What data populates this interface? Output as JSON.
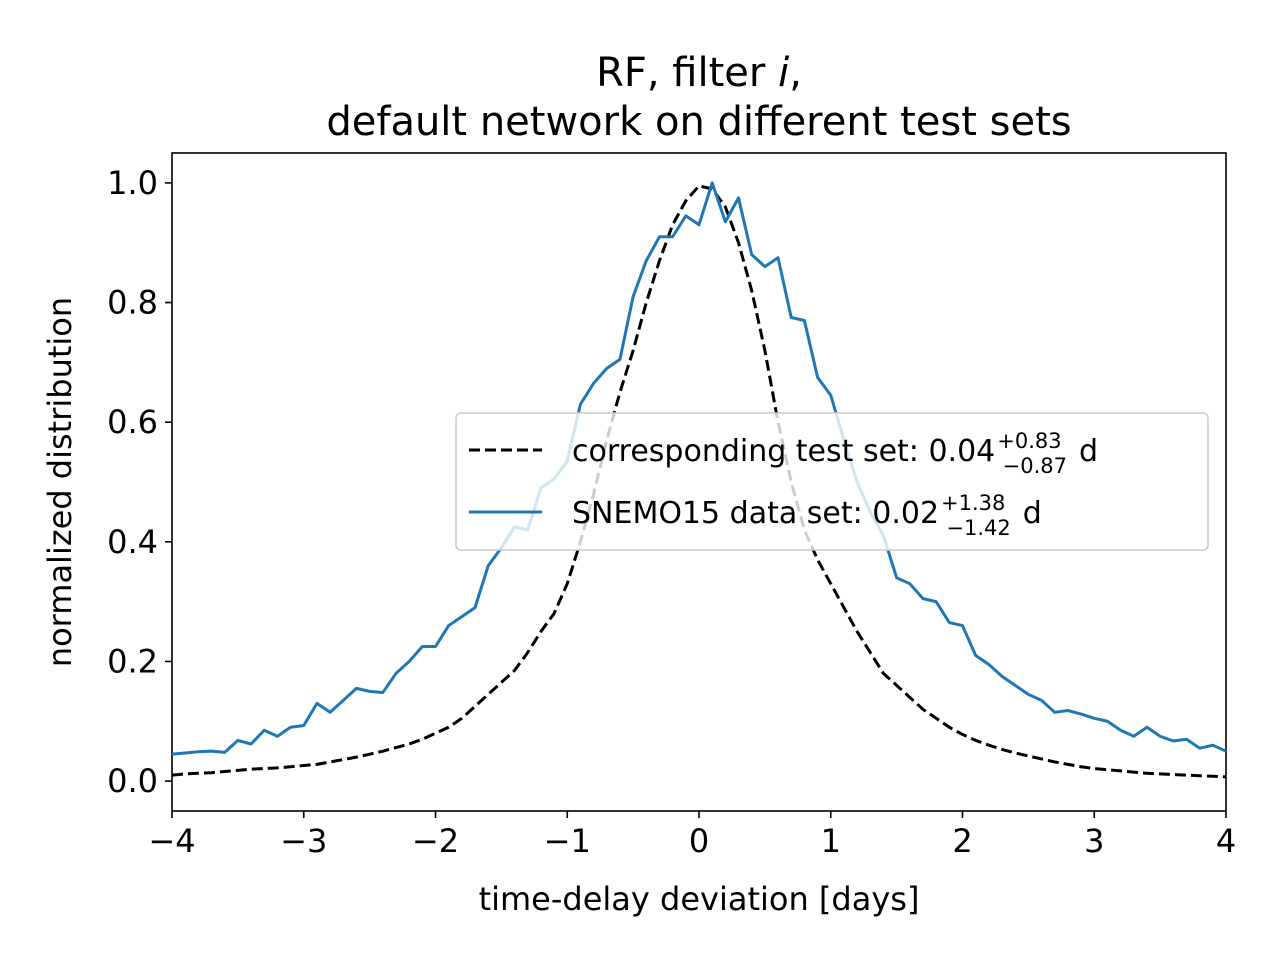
{
  "chart_data": {
    "type": "line",
    "title_line1": "RF, filter ",
    "title_italic": "i",
    "title_line1_end": ",",
    "title_line2": "default network on different test sets",
    "xlabel": "time-delay deviation [days]",
    "ylabel": "normalized distribution",
    "xlim": [
      -4,
      4
    ],
    "ylim": [
      -0.05,
      1.05
    ],
    "xticks": [
      -4,
      -3,
      -2,
      -1,
      0,
      1,
      2,
      3,
      4
    ],
    "xtick_labels": [
      "−4",
      "−3",
      "−2",
      "−1",
      "0",
      "1",
      "2",
      "3",
      "4"
    ],
    "yticks": [
      0.0,
      0.2,
      0.4,
      0.6,
      0.8,
      1.0
    ],
    "ytick_labels": [
      "0.0",
      "0.2",
      "0.4",
      "0.6",
      "0.8",
      "1.0"
    ],
    "grid": false,
    "legend_position": "center-right",
    "x": [
      -4.0,
      -3.9,
      -3.8,
      -3.7,
      -3.6,
      -3.5,
      -3.4,
      -3.3,
      -3.2,
      -3.1,
      -3.0,
      -2.9,
      -2.8,
      -2.7,
      -2.6,
      -2.5,
      -2.4,
      -2.3,
      -2.2,
      -2.1,
      -2.0,
      -1.9,
      -1.8,
      -1.7,
      -1.6,
      -1.5,
      -1.4,
      -1.3,
      -1.2,
      -1.1,
      -1.0,
      -0.9,
      -0.8,
      -0.7,
      -0.6,
      -0.5,
      -0.4,
      -0.3,
      -0.2,
      -0.1,
      0.0,
      0.1,
      0.2,
      0.3,
      0.4,
      0.5,
      0.6,
      0.7,
      0.8,
      0.9,
      1.0,
      1.1,
      1.2,
      1.3,
      1.4,
      1.5,
      1.6,
      1.7,
      1.8,
      1.9,
      2.0,
      2.1,
      2.2,
      2.3,
      2.4,
      2.5,
      2.6,
      2.7,
      2.8,
      2.9,
      3.0,
      3.1,
      3.2,
      3.3,
      3.4,
      3.5,
      3.6,
      3.7,
      3.8,
      3.9,
      4.0
    ],
    "series": [
      {
        "name": "corresponding test set",
        "label_value": "0.04",
        "label_sup": "+0.83",
        "label_sub": "−0.87",
        "label_unit": "d",
        "label_prefix": "corresponding test set: ",
        "color": "#000000",
        "dash": "dashed",
        "values": [
          0.01,
          0.012,
          0.013,
          0.014,
          0.016,
          0.018,
          0.02,
          0.021,
          0.022,
          0.024,
          0.026,
          0.028,
          0.032,
          0.036,
          0.04,
          0.045,
          0.05,
          0.056,
          0.062,
          0.07,
          0.08,
          0.09,
          0.105,
          0.125,
          0.145,
          0.165,
          0.185,
          0.215,
          0.25,
          0.28,
          0.33,
          0.4,
          0.48,
          0.57,
          0.65,
          0.72,
          0.8,
          0.87,
          0.93,
          0.97,
          0.995,
          0.99,
          0.96,
          0.9,
          0.82,
          0.72,
          0.6,
          0.5,
          0.42,
          0.37,
          0.33,
          0.29,
          0.25,
          0.215,
          0.18,
          0.16,
          0.14,
          0.12,
          0.105,
          0.09,
          0.078,
          0.068,
          0.06,
          0.053,
          0.047,
          0.042,
          0.037,
          0.032,
          0.028,
          0.024,
          0.021,
          0.019,
          0.017,
          0.015,
          0.013,
          0.012,
          0.011,
          0.01,
          0.009,
          0.008,
          0.007
        ]
      },
      {
        "name": "SNEMO15 data set",
        "label_value": "0.02",
        "label_sup": "+1.38",
        "label_sub": "−1.42",
        "label_unit": "d",
        "label_prefix": "SNEMO15 data set: ",
        "color": "#1f77b4",
        "dash": "solid",
        "values": [
          0.045,
          0.047,
          0.049,
          0.05,
          0.048,
          0.068,
          0.062,
          0.085,
          0.075,
          0.09,
          0.093,
          0.13,
          0.115,
          0.135,
          0.155,
          0.15,
          0.148,
          0.18,
          0.2,
          0.225,
          0.225,
          0.26,
          0.275,
          0.29,
          0.36,
          0.39,
          0.425,
          0.42,
          0.49,
          0.505,
          0.535,
          0.63,
          0.665,
          0.69,
          0.705,
          0.81,
          0.87,
          0.91,
          0.91,
          0.945,
          0.93,
          1.0,
          0.935,
          0.975,
          0.88,
          0.86,
          0.875,
          0.775,
          0.77,
          0.675,
          0.645,
          0.57,
          0.5,
          0.45,
          0.41,
          0.34,
          0.33,
          0.305,
          0.3,
          0.265,
          0.26,
          0.21,
          0.195,
          0.175,
          0.16,
          0.145,
          0.135,
          0.115,
          0.118,
          0.112,
          0.105,
          0.1,
          0.085,
          0.075,
          0.09,
          0.075,
          0.067,
          0.07,
          0.055,
          0.06,
          0.05
        ]
      }
    ]
  }
}
